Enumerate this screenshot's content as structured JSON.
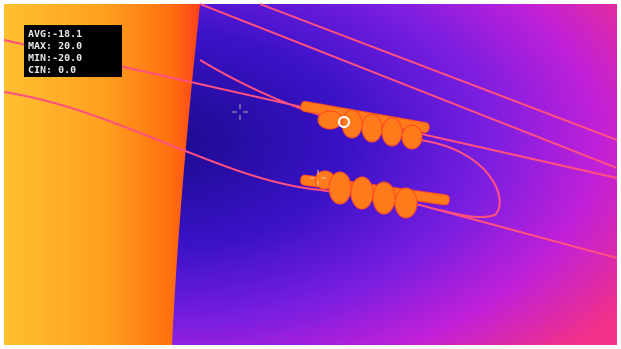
{
  "overlay": {
    "readouts": [
      "AVG:-18.1",
      "MAX: 20.0",
      "MIN:-20.0",
      "CIN: 0.0"
    ]
  }
}
